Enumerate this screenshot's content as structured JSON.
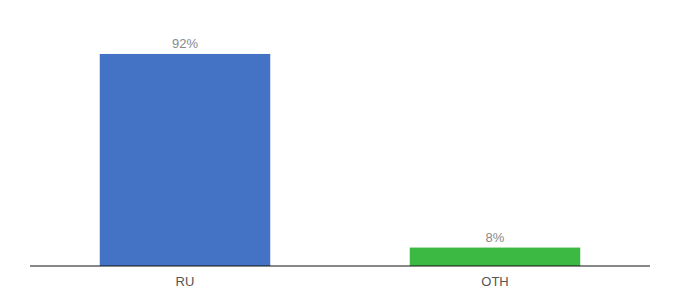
{
  "chart_data": {
    "type": "bar",
    "categories": [
      "RU",
      "OTH"
    ],
    "values": [
      92,
      8
    ],
    "value_labels": [
      "92%",
      "8%"
    ],
    "colors": [
      "#4472c4",
      "#3cb943"
    ],
    "ylim": [
      0,
      105
    ],
    "data_labels": true,
    "tick_labels": "x",
    "grid": false
  }
}
